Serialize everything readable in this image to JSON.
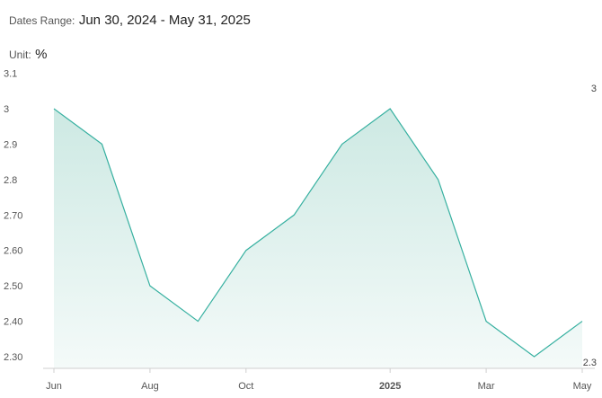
{
  "header": {
    "dates_label": "Dates Range:",
    "dates_value": "Jun 30, 2024 - May 31, 2025",
    "unit_label": "Unit:",
    "unit_value": "%"
  },
  "colors": {
    "line": "#36b0a0",
    "fill_top": "#cde9e3",
    "fill_bottom": "#f4faf9",
    "axis": "#cfcfcf"
  },
  "chart_data": {
    "type": "area",
    "x": [
      "2024-06-30",
      "2024-07-31",
      "2024-08-31",
      "2024-09-30",
      "2024-10-31",
      "2024-11-30",
      "2024-12-31",
      "2025-01-31",
      "2025-02-28",
      "2025-03-31",
      "2025-04-30",
      "2025-05-31"
    ],
    "series": [
      {
        "values": [
          3.0,
          2.9,
          2.5,
          2.4,
          2.6,
          2.7,
          2.9,
          3.0,
          2.8,
          2.4,
          2.3,
          2.4
        ]
      }
    ],
    "ylim": [
      2.27,
      3.1
    ],
    "y_ticks": [
      {
        "value": 3.1,
        "label": "3.1"
      },
      {
        "value": 3.0,
        "label": "3"
      },
      {
        "value": 2.9,
        "label": "2.9"
      },
      {
        "value": 2.8,
        "label": "2.8"
      },
      {
        "value": 2.7,
        "label": "2.70"
      },
      {
        "value": 2.6,
        "label": "2.60"
      },
      {
        "value": 2.5,
        "label": "2.50"
      },
      {
        "value": 2.4,
        "label": "2.40"
      },
      {
        "value": 2.3,
        "label": "2.30"
      }
    ],
    "x_ticks": [
      {
        "index": 0,
        "label": "Jun",
        "bold": false
      },
      {
        "index": 2,
        "label": "Aug",
        "bold": false
      },
      {
        "index": 4,
        "label": "Oct",
        "bold": false
      },
      {
        "index": 7,
        "label": "2025",
        "bold": true
      },
      {
        "index": 9,
        "label": "Mar",
        "bold": false
      },
      {
        "index": 11,
        "label": "May",
        "bold": false
      }
    ],
    "max_label": "3",
    "min_label": "2.3",
    "grid": false
  }
}
